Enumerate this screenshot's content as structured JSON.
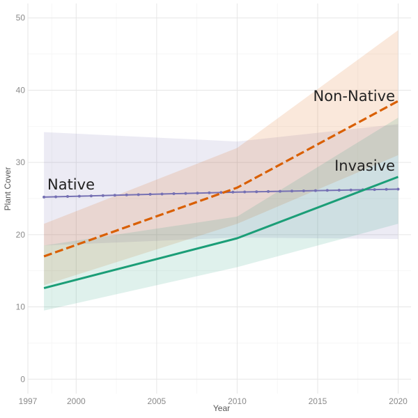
{
  "chart_data": {
    "type": "line",
    "title": "",
    "xlabel": "Year",
    "ylabel": "Plant Cover",
    "xlim": [
      1997,
      2020.8
    ],
    "ylim": [
      -2,
      52
    ],
    "x_ticks": [
      1997,
      2000,
      2005,
      2010,
      2015,
      2020
    ],
    "y_ticks": [
      0,
      10,
      20,
      30,
      40,
      50
    ],
    "grid": true,
    "legend": "none",
    "series": [
      {
        "name": "Native",
        "color": "#7570b3",
        "line_style": "solid-with-points",
        "x": [
          1998,
          2010,
          2020
        ],
        "y": [
          25.2,
          25.9,
          26.3
        ],
        "ci_lower": [
          18.5,
          19.6,
          19.4
        ],
        "ci_upper": [
          34.2,
          32.9,
          35.3
        ]
      },
      {
        "name": "Non-Native",
        "color": "#d95f02",
        "line_style": "dashed",
        "x": [
          1998,
          2010,
          2020
        ],
        "y": [
          17.0,
          26.5,
          38.5
        ],
        "ci_lower": [
          13.0,
          21.5,
          31.0
        ],
        "ci_upper": [
          21.5,
          32.0,
          48.3
        ]
      },
      {
        "name": "Invasive",
        "color": "#1b9e77",
        "line_style": "solid",
        "x": [
          1998,
          2010,
          2020
        ],
        "y": [
          12.6,
          19.5,
          28.0
        ],
        "ci_lower": [
          9.5,
          15.5,
          21.5
        ],
        "ci_upper": [
          18.5,
          22.5,
          36.2
        ]
      }
    ]
  }
}
